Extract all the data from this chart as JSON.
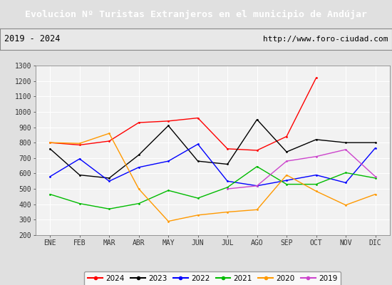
{
  "title": "Evolucion Nº Turistas Extranjeros en el municipio de Andújar",
  "subtitle_left": "2019 - 2024",
  "subtitle_right": "http://www.foro-ciudad.com",
  "months": [
    "ENE",
    "FEB",
    "MAR",
    "ABR",
    "MAY",
    "JUN",
    "JUL",
    "AGO",
    "SEP",
    "OCT",
    "NOV",
    "DIC"
  ],
  "series_2024_x": [
    0,
    1,
    2,
    3,
    4,
    5,
    6,
    7,
    8,
    9
  ],
  "series_2024_y": [
    800,
    785,
    810,
    930,
    940,
    960,
    760,
    750,
    840,
    1220
  ],
  "series_2023_x": [
    0,
    1,
    2,
    3,
    4,
    5,
    6,
    7,
    8,
    9,
    10,
    11
  ],
  "series_2023_y": [
    760,
    590,
    570,
    720,
    910,
    680,
    660,
    950,
    740,
    820,
    800,
    800
  ],
  "series_2022_x": [
    0,
    1,
    2,
    3,
    4,
    5,
    6,
    7,
    8,
    9,
    10,
    11
  ],
  "series_2022_y": [
    580,
    695,
    550,
    640,
    680,
    790,
    550,
    520,
    555,
    590,
    540,
    765
  ],
  "series_2021_x": [
    0,
    1,
    2,
    3,
    4,
    5,
    6,
    7,
    8,
    9,
    10,
    11
  ],
  "series_2021_y": [
    465,
    405,
    370,
    405,
    490,
    440,
    510,
    645,
    530,
    530,
    605,
    570
  ],
  "series_2020_x": [
    0,
    1,
    2,
    3,
    4,
    5,
    6,
    7,
    8,
    9,
    10,
    11
  ],
  "series_2020_y": [
    800,
    795,
    860,
    500,
    290,
    330,
    350,
    365,
    590,
    485,
    395,
    465
  ],
  "series_2019_x": [
    6,
    7,
    8,
    9,
    10,
    11
  ],
  "series_2019_y": [
    500,
    520,
    680,
    710,
    755,
    580
  ],
  "colors": {
    "2024": "#ff0000",
    "2023": "#000000",
    "2022": "#0000ff",
    "2021": "#00bb00",
    "2020": "#ff9900",
    "2019": "#cc44cc"
  },
  "ylim": [
    200,
    1300
  ],
  "yticks": [
    200,
    300,
    400,
    500,
    600,
    700,
    800,
    900,
    1000,
    1100,
    1200,
    1300
  ],
  "title_bg": "#4499ff",
  "title_color": "#ffffff",
  "plot_bg": "#f2f2f2",
  "grid_color": "#ffffff",
  "outer_bg": "#e0e0e0",
  "border_color": "#888888",
  "subtitle_bg": "#e8e8e8"
}
